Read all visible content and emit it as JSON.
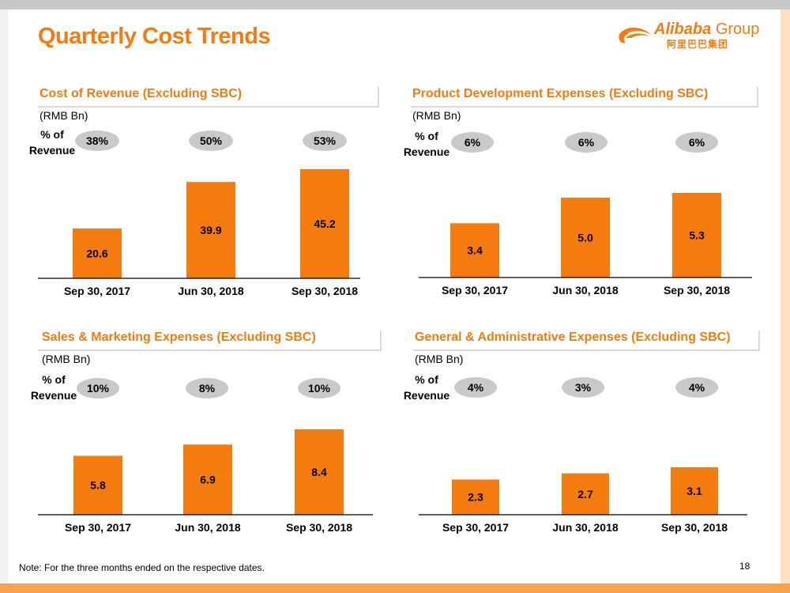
{
  "slide": {
    "title": "Quarterly Cost Trends",
    "logo_text": "Alibaba",
    "logo_group": "Group",
    "logo_chinese": "阿里巴巴集团",
    "note": "Note:  For the three months ended on the respective dates.",
    "page_number": "18"
  },
  "colors": {
    "accent": "#f47b0e",
    "bar": "#f47b0e",
    "pill": "#c9c9c9"
  },
  "chart_data": [
    {
      "type": "bar",
      "title": "Cost of Revenue (Excluding SBC)",
      "ylabel": "(RMB Bn)",
      "annotation_label": "% of\nRevenue",
      "categories": [
        "Sep 30, 2017",
        "Jun 30, 2018",
        "Sep 30, 2018"
      ],
      "values": [
        20.6,
        39.9,
        45.2
      ],
      "value_labels": [
        "20.6",
        "39.9",
        "45.2"
      ],
      "pct_of_revenue": [
        "38%",
        "50%",
        "53%"
      ]
    },
    {
      "type": "bar",
      "title": "Product Development Expenses (Excluding SBC)",
      "ylabel": "(RMB Bn)",
      "annotation_label": "% of\nRevenue",
      "categories": [
        "Sep 30, 2017",
        "Jun 30, 2018",
        "Sep 30, 2018"
      ],
      "values": [
        3.4,
        5.0,
        5.3
      ],
      "value_labels": [
        "3.4",
        "5.0",
        "5.3"
      ],
      "pct_of_revenue": [
        "6%",
        "6%",
        "6%"
      ]
    },
    {
      "type": "bar",
      "title": "Sales & Marketing Expenses (Excluding SBC)",
      "ylabel": "(RMB Bn)",
      "annotation_label": "% of\nRevenue",
      "categories": [
        "Sep 30, 2017",
        "Jun 30, 2018",
        "Sep 30, 2018"
      ],
      "values": [
        5.8,
        6.9,
        8.4
      ],
      "value_labels": [
        "5.8",
        "6.9",
        "8.4"
      ],
      "pct_of_revenue": [
        "10%",
        "8%",
        "10%"
      ]
    },
    {
      "type": "bar",
      "title": "General & Administrative Expenses (Excluding SBC)",
      "ylabel": "(RMB Bn)",
      "annotation_label": "% of\nRevenue",
      "categories": [
        "Sep 30, 2017",
        "Jun 30, 2018",
        "Sep 30, 2018"
      ],
      "values": [
        2.3,
        2.7,
        3.1
      ],
      "value_labels": [
        "2.3",
        "2.7",
        "3.1"
      ],
      "pct_of_revenue": [
        "4%",
        "3%",
        "4%"
      ]
    }
  ]
}
